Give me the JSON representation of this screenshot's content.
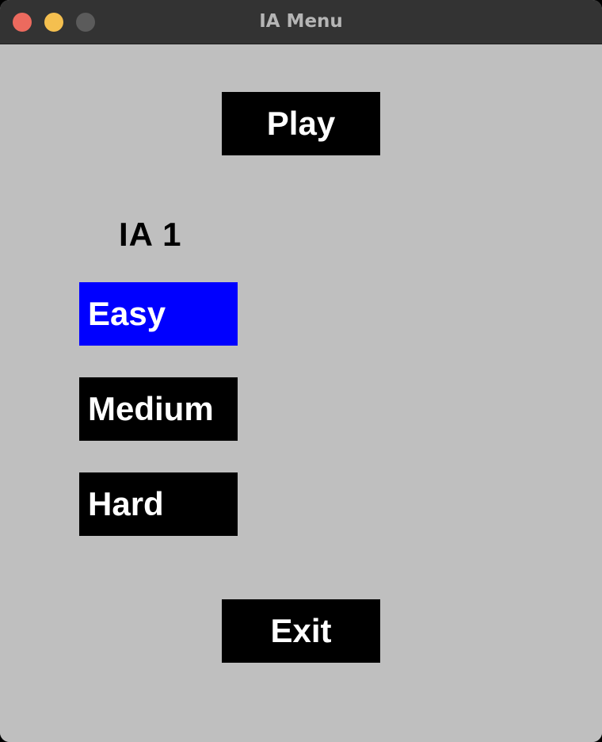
{
  "window": {
    "title": "IA Menu"
  },
  "menu": {
    "play_label": "Play",
    "ai_label": "IA 1",
    "difficulties": [
      {
        "label": "Easy",
        "selected": true
      },
      {
        "label": "Medium",
        "selected": false
      },
      {
        "label": "Hard",
        "selected": false
      }
    ],
    "exit_label": "Exit"
  },
  "colors": {
    "background": "#bfbfbf",
    "button": "#000000",
    "button_text": "#ffffff",
    "selected": "#0000ff",
    "titlebar": "#333333"
  }
}
